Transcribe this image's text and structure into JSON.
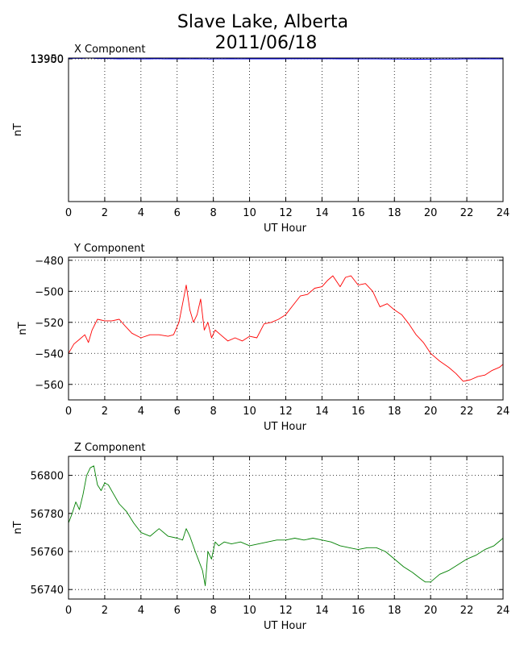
{
  "figure": {
    "title_line1": "Slave Lake, Alberta",
    "title_line2": "2011/06/18"
  },
  "chart_data": [
    {
      "type": "line",
      "title": "X Component",
      "xlabel": "UT Hour",
      "ylabel": "nT",
      "color": "#0000ff",
      "grid": true,
      "xlim": [
        0,
        24
      ],
      "ylim": [
        1385,
        13971
      ],
      "xticks": [
        0,
        2,
        4,
        6,
        8,
        10,
        12,
        14,
        16,
        18,
        20,
        22,
        24
      ],
      "yticks": [
        13900,
        13950
      ],
      "x": [
        0,
        0.3,
        0.5,
        0.7,
        0.9,
        1.1,
        1.3,
        1.5,
        1.7,
        1.9,
        2.1,
        2.4,
        2.8,
        3.2,
        3.5,
        4.0,
        4.5,
        4.9,
        5.3,
        5.7,
        6.0,
        6.3,
        6.7,
        7.0,
        7.3,
        7.6,
        7.8,
        8.0,
        8.5,
        9.0,
        9.5,
        10.0,
        10.5,
        11.0,
        11.5,
        12.0,
        12.5,
        13.0,
        13.5,
        14.0,
        14.5,
        15.0,
        15.4,
        15.8,
        16.2,
        16.6,
        17.0,
        17.4,
        17.7,
        18.0,
        18.3,
        18.6,
        19.0,
        19.4,
        19.8,
        20.2,
        20.6,
        21.0,
        21.4,
        21.8,
        22.2,
        22.6,
        22.9,
        23.2,
        23.5,
        23.8,
        24.0
      ],
      "y": [
        13929,
        13940,
        13953,
        13938,
        13950,
        13962,
        13958,
        13935,
        13925,
        13920,
        13923,
        13912,
        13900,
        13905,
        13906,
        13893,
        13898,
        13915,
        13896,
        13900,
        13896,
        13905,
        13893,
        13899,
        13893,
        13891,
        13880,
        13890,
        13896,
        13898,
        13893,
        13897,
        13899,
        13901,
        13903,
        13905,
        13907,
        13908,
        13909,
        13909,
        13906,
        13902,
        13899,
        13890,
        13896,
        13893,
        13892,
        13886,
        13884,
        13878,
        13877,
        13873,
        13866,
        13868,
        13872,
        13875,
        13878,
        13876,
        13878,
        13890,
        13894,
        13892,
        13898,
        13894,
        13903,
        13895,
        13906
      ]
    },
    {
      "type": "line",
      "title": "Y Component",
      "xlabel": "UT Hour",
      "ylabel": "nT",
      "color": "#ff0000",
      "grid": true,
      "xlim": [
        0,
        24
      ],
      "ylim": [
        -570,
        -478
      ],
      "xticks": [
        0,
        2,
        4,
        6,
        8,
        10,
        12,
        14,
        16,
        18,
        20,
        22,
        24
      ],
      "yticks": [
        -480,
        -500,
        -520,
        -540,
        -560
      ],
      "x": [
        0,
        0.3,
        0.6,
        0.9,
        1.1,
        1.3,
        1.6,
        2.0,
        2.4,
        2.8,
        3.1,
        3.5,
        4.0,
        4.5,
        5.0,
        5.5,
        5.8,
        6.1,
        6.3,
        6.5,
        6.7,
        6.9,
        7.1,
        7.3,
        7.5,
        7.7,
        7.9,
        8.1,
        8.4,
        8.8,
        9.2,
        9.6,
        10.0,
        10.4,
        10.8,
        11.2,
        11.6,
        12.0,
        12.4,
        12.8,
        13.2,
        13.6,
        14.0,
        14.3,
        14.6,
        15.0,
        15.3,
        15.6,
        16.0,
        16.4,
        16.8,
        17.2,
        17.6,
        18.0,
        18.4,
        18.8,
        19.2,
        19.6,
        20.0,
        20.5,
        21.0,
        21.4,
        21.8,
        22.2,
        22.6,
        23.0,
        23.4,
        23.8,
        24.0
      ],
      "y": [
        -540,
        -534,
        -531,
        -528,
        -533,
        -525,
        -518,
        -519,
        -519,
        -518,
        -522,
        -527,
        -530,
        -528,
        -528,
        -529,
        -528,
        -520,
        -508,
        -496,
        -512,
        -520,
        -515,
        -505,
        -525,
        -520,
        -530,
        -525,
        -528,
        -532,
        -530,
        -532,
        -529,
        -530,
        -521,
        -520,
        -518,
        -515,
        -509,
        -503,
        -502,
        -498,
        -497,
        -493,
        -490,
        -497,
        -491,
        -490,
        -496,
        -495,
        -500,
        -510,
        -508,
        -512,
        -515,
        -521,
        -528,
        -533,
        -540,
        -545,
        -549,
        -553,
        -558,
        -557,
        -555,
        -554,
        -551,
        -549,
        -547
      ]
    },
    {
      "type": "line",
      "title": "Z Component",
      "xlabel": "UT Hour",
      "ylabel": "nT",
      "color": "#008000",
      "grid": true,
      "xlim": [
        0,
        24
      ],
      "ylim": [
        56735,
        56810
      ],
      "xticks": [
        0,
        2,
        4,
        6,
        8,
        10,
        12,
        14,
        16,
        18,
        20,
        22,
        24
      ],
      "yticks": [
        56740,
        56760,
        56780,
        56800
      ],
      "x": [
        0,
        0.2,
        0.4,
        0.6,
        0.8,
        1.0,
        1.2,
        1.4,
        1.6,
        1.8,
        2.0,
        2.2,
        2.5,
        2.8,
        3.2,
        3.6,
        4.0,
        4.5,
        5.0,
        5.5,
        6.0,
        6.3,
        6.5,
        6.7,
        7.0,
        7.2,
        7.4,
        7.55,
        7.7,
        7.9,
        8.1,
        8.3,
        8.6,
        9.0,
        9.5,
        10.0,
        10.5,
        11.0,
        11.5,
        12.0,
        12.5,
        13.0,
        13.5,
        14.0,
        14.5,
        15.0,
        15.5,
        16.0,
        16.5,
        17.0,
        17.5,
        18.0,
        18.5,
        19.0,
        19.4,
        19.7,
        20.0,
        20.5,
        21.0,
        21.5,
        22.0,
        22.5,
        23.0,
        23.5,
        24.0
      ],
      "y": [
        56775,
        56780,
        56786,
        56782,
        56790,
        56800,
        56804,
        56805,
        56795,
        56792,
        56796,
        56795,
        56790,
        56785,
        56781,
        56775,
        56770,
        56768,
        56772,
        56768,
        56767,
        56766,
        56772,
        56768,
        56760,
        56755,
        56750,
        56742,
        56760,
        56756,
        56765,
        56763,
        56765,
        56764,
        56765,
        56763,
        56764,
        56765,
        56766,
        56766,
        56767,
        56766,
        56767,
        56766,
        56765,
        56763,
        56762,
        56761,
        56762,
        56762,
        56760,
        56756,
        56752,
        56749,
        56746,
        56744,
        56744,
        56748,
        56750,
        56753,
        56756,
        56758,
        56761,
        56763,
        56767
      ]
    }
  ]
}
